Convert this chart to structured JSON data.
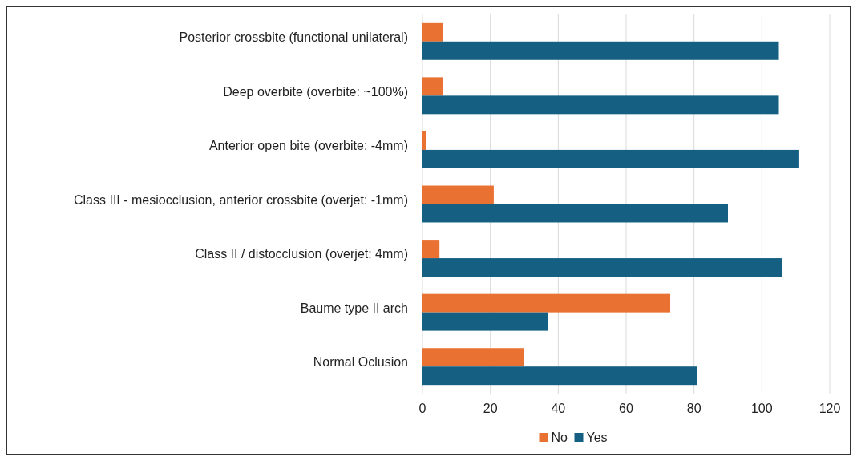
{
  "chart_data": {
    "type": "bar",
    "orientation": "horizontal",
    "categories": [
      "Posterior crossbite (functional unilateral)",
      "Deep overbite (overbite: ~100%)",
      "Anterior open bite (overbite: -4mm)",
      "Class III - mesiocclusion, anterior crossbite (overjet: -1mm)",
      "Class II / distocclusion (overjet: 4mm)",
      "Baume type II arch",
      "Normal Oclusion"
    ],
    "series": [
      {
        "name": "No",
        "color": "#e97132",
        "values": [
          6,
          6,
          1,
          21,
          5,
          73,
          30
        ]
      },
      {
        "name": "Yes",
        "color": "#156082",
        "values": [
          105,
          105,
          111,
          90,
          106,
          37,
          81
        ]
      }
    ],
    "xlim": [
      0,
      120
    ],
    "xticks": [
      0,
      20,
      40,
      60,
      80,
      100,
      120
    ],
    "grid": "x",
    "legend": "bottom"
  }
}
